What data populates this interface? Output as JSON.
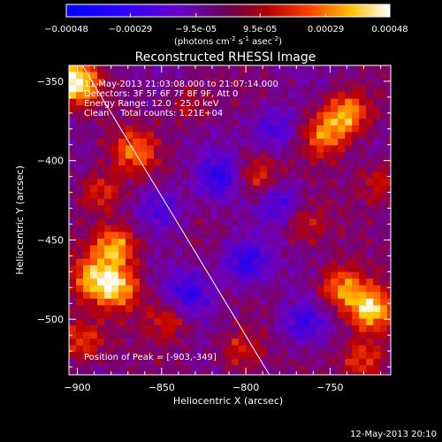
{
  "colorbar": {
    "ticks": [
      "-0.00048",
      "-0.00029",
      "-9.5e-05",
      "9.5e-05",
      "0.00029",
      "0.00048"
    ],
    "units_label": "(photons cm",
    "units_sup1": "-2",
    "units_mid": " s",
    "units_sup2": "-1",
    "units_tail": " asec",
    "units_sup3": "-2",
    "units_close": ")"
  },
  "chart_data": {
    "type": "heatmap",
    "title": "Reconstructed RHESSI Image",
    "xlabel": "Heliocentric X (arcsec)",
    "ylabel": "Heliocentric Y (arcsec)",
    "xlim": [
      -905,
      -714
    ],
    "ylim": [
      -535,
      -340
    ],
    "x_ticks": [
      -900,
      -850,
      -800,
      -750
    ],
    "y_ticks": [
      -350,
      -400,
      -450,
      -500
    ],
    "x_tick_labels": [
      "−900",
      "−850",
      "−800",
      "−750"
    ],
    "y_tick_labels": [
      "−350",
      "−400",
      "−450",
      "−500"
    ],
    "value_range": [
      -0.00048,
      0.00048
    ],
    "colormap": [
      "#0000ff",
      "#5a00d0",
      "#8a00b0",
      "#c00000",
      "#ff5000",
      "#ffd800",
      "#ffffff"
    ],
    "limb_line": [
      [
        -897,
        -340
      ],
      [
        -786,
        -535
      ]
    ],
    "annotations": {
      "line1": "11-May-2013 21:03:08.000 to 21:07:14.000",
      "line2": "Detectors: 3F 5F 6F 7F 8F 9F, Att 0",
      "line3": "Energy Range: 12.0 - 25.0 keV",
      "line4": "Clean    Total counts: 1.21E+04",
      "peak": "Position of Peak = [-903,-349]"
    },
    "peak_position": [
      -903,
      -349
    ],
    "hot_spots": [
      {
        "x": -903,
        "y": -349,
        "v": 0.00048
      },
      {
        "x": -742,
        "y": -368,
        "v": 0.00036
      },
      {
        "x": -755,
        "y": -382,
        "v": 0.0003
      },
      {
        "x": -728,
        "y": -492,
        "v": 0.00044
      },
      {
        "x": -745,
        "y": -478,
        "v": 0.00033
      },
      {
        "x": -880,
        "y": -452,
        "v": 0.00038
      },
      {
        "x": -893,
        "y": -472,
        "v": 0.0003
      },
      {
        "x": -878,
        "y": -478,
        "v": 0.00035
      },
      {
        "x": -868,
        "y": -392,
        "v": 0.00028
      },
      {
        "x": -888,
        "y": -418,
        "v": 0.00022
      },
      {
        "x": -796,
        "y": -408,
        "v": 0.00022
      },
      {
        "x": -848,
        "y": -498,
        "v": 0.0002
      },
      {
        "x": -806,
        "y": -518,
        "v": 0.00018
      },
      {
        "x": -732,
        "y": -523,
        "v": 0.00025
      },
      {
        "x": -768,
        "y": -438,
        "v": 0.00016
      },
      {
        "x": -836,
        "y": -363,
        "v": 0.00014
      },
      {
        "x": -722,
        "y": -412,
        "v": 0.00018
      },
      {
        "x": -900,
        "y": -512,
        "v": 0.00024
      }
    ],
    "cold_spots": [
      {
        "x": -818,
        "y": -408,
        "v": -0.00028
      },
      {
        "x": -802,
        "y": -462,
        "v": -0.0003
      },
      {
        "x": -836,
        "y": -482,
        "v": -0.00025
      },
      {
        "x": -785,
        "y": -378,
        "v": -0.00022
      },
      {
        "x": -768,
        "y": -500,
        "v": -0.00024
      },
      {
        "x": -852,
        "y": -428,
        "v": -0.0002
      },
      {
        "x": -782,
        "y": -425,
        "v": -0.0002
      }
    ]
  },
  "footer": {
    "timestamp": "12-May-2013 20:10"
  }
}
